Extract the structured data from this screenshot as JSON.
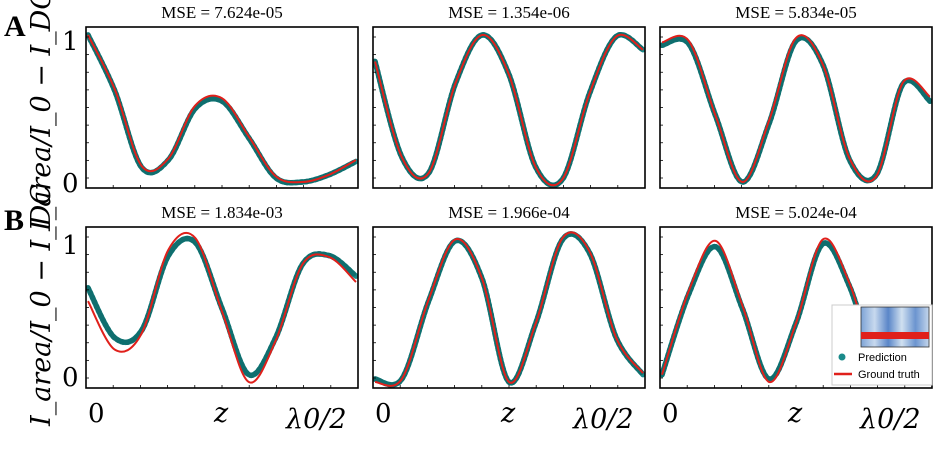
{
  "figure": {
    "panel_labels": [
      "A",
      "B"
    ],
    "y_axis_label": "I_area/I_0 − I_DC",
    "x_tick_labels": [
      "0",
      "z",
      "λ0/2"
    ],
    "y_tick_labels": [
      "0",
      "1"
    ],
    "legend": {
      "prediction": "Prediction",
      "ground_truth": "Ground truth"
    },
    "colors": {
      "prediction": "#1a8a8a",
      "ground_truth": "#e0201b"
    }
  },
  "chart_data": [
    {
      "type": "line",
      "row": "A",
      "title": "MSE = 7.624e-05",
      "ylim": [
        0,
        1
      ],
      "series": [
        {
          "name": "Prediction",
          "x": [
            0,
            0.1,
            0.2,
            0.3,
            0.4,
            0.5,
            0.6,
            0.7,
            0.8,
            0.9,
            1.0
          ],
          "y": [
            1.0,
            0.62,
            0.1,
            0.15,
            0.5,
            0.55,
            0.3,
            0.03,
            0.0,
            0.05,
            0.14
          ]
        },
        {
          "name": "Ground truth",
          "x": [
            0,
            0.1,
            0.2,
            0.3,
            0.4,
            0.5,
            0.6,
            0.7,
            0.8,
            0.9,
            1.0
          ],
          "y": [
            1.0,
            0.63,
            0.11,
            0.16,
            0.52,
            0.57,
            0.31,
            0.04,
            0.0,
            0.05,
            0.15
          ]
        }
      ]
    },
    {
      "type": "line",
      "row": "A",
      "title": "MSE = 1.354e-06",
      "ylim": [
        0,
        1
      ],
      "series": [
        {
          "name": "Prediction",
          "x": [
            0,
            0.1,
            0.2,
            0.3,
            0.4,
            0.5,
            0.6,
            0.7,
            0.8,
            0.9,
            1.0
          ],
          "y": [
            0.82,
            0.17,
            0.06,
            0.67,
            1.0,
            0.73,
            0.1,
            0.02,
            0.6,
            0.99,
            0.9
          ]
        },
        {
          "name": "Ground truth",
          "x": [
            0,
            0.1,
            0.2,
            0.3,
            0.4,
            0.5,
            0.6,
            0.7,
            0.8,
            0.9,
            1.0
          ],
          "y": [
            0.82,
            0.17,
            0.06,
            0.67,
            1.0,
            0.73,
            0.1,
            0.02,
            0.6,
            0.99,
            0.9
          ]
        }
      ]
    },
    {
      "type": "line",
      "row": "A",
      "title": "MSE = 5.834e-05",
      "ylim": [
        0,
        1
      ],
      "series": [
        {
          "name": "Prediction",
          "x": [
            0,
            0.1,
            0.2,
            0.3,
            0.4,
            0.5,
            0.6,
            0.7,
            0.8,
            0.9,
            1.0
          ],
          "y": [
            0.93,
            0.94,
            0.45,
            0.0,
            0.4,
            0.96,
            0.8,
            0.15,
            0.05,
            0.67,
            0.55
          ]
        },
        {
          "name": "Ground truth",
          "x": [
            0,
            0.1,
            0.2,
            0.3,
            0.4,
            0.5,
            0.6,
            0.7,
            0.8,
            0.9,
            1.0
          ],
          "y": [
            0.95,
            0.96,
            0.45,
            0.0,
            0.42,
            0.98,
            0.8,
            0.16,
            0.04,
            0.68,
            0.58
          ]
        }
      ]
    },
    {
      "type": "line",
      "row": "B",
      "title": "MSE = 1.834e-03",
      "ylim": [
        0,
        1
      ],
      "series": [
        {
          "name": "Prediction",
          "x": [
            0,
            0.1,
            0.2,
            0.3,
            0.4,
            0.5,
            0.6,
            0.7,
            0.8,
            0.9,
            1.0
          ],
          "y": [
            0.64,
            0.3,
            0.35,
            0.86,
            0.95,
            0.5,
            0.05,
            0.3,
            0.8,
            0.86,
            0.72
          ]
        },
        {
          "name": "Ground truth",
          "x": [
            0,
            0.1,
            0.2,
            0.3,
            0.4,
            0.5,
            0.6,
            0.7,
            0.8,
            0.9,
            1.0
          ],
          "y": [
            0.55,
            0.22,
            0.33,
            0.9,
            0.98,
            0.48,
            0.0,
            0.28,
            0.8,
            0.85,
            0.68
          ]
        }
      ]
    },
    {
      "type": "line",
      "row": "B",
      "title": "MSE = 1.966e-04",
      "ylim": [
        0,
        1
      ],
      "series": [
        {
          "name": "Prediction",
          "x": [
            0,
            0.1,
            0.2,
            0.3,
            0.4,
            0.5,
            0.6,
            0.7,
            0.8,
            0.9,
            1.0
          ],
          "y": [
            0.02,
            0.02,
            0.55,
            0.96,
            0.7,
            0.0,
            0.4,
            0.97,
            0.88,
            0.3,
            0.05
          ]
        },
        {
          "name": "Ground truth",
          "x": [
            0,
            0.1,
            0.2,
            0.3,
            0.4,
            0.5,
            0.6,
            0.7,
            0.8,
            0.9,
            1.0
          ],
          "y": [
            0.0,
            0.02,
            0.56,
            0.97,
            0.7,
            0.0,
            0.4,
            0.98,
            0.89,
            0.3,
            0.06
          ]
        }
      ]
    },
    {
      "type": "line",
      "row": "B",
      "title": "MSE = 5.024e-04",
      "ylim": [
        0,
        1
      ],
      "series": [
        {
          "name": "Prediction",
          "x": [
            0,
            0.1,
            0.2,
            0.3,
            0.4,
            0.5,
            0.6,
            0.7,
            0.8,
            0.9,
            1.0
          ],
          "y": [
            0.05,
            0.6,
            0.92,
            0.5,
            0.02,
            0.4,
            0.94,
            0.65,
            0.12,
            0.02,
            0.04
          ]
        },
        {
          "name": "Ground truth",
          "x": [
            0,
            0.1,
            0.2,
            0.3,
            0.4,
            0.5,
            0.6,
            0.7,
            0.8,
            0.9,
            1.0
          ],
          "y": [
            0.05,
            0.62,
            0.96,
            0.52,
            0.0,
            0.4,
            0.97,
            0.67,
            0.12,
            0.02,
            0.04
          ]
        }
      ]
    }
  ]
}
